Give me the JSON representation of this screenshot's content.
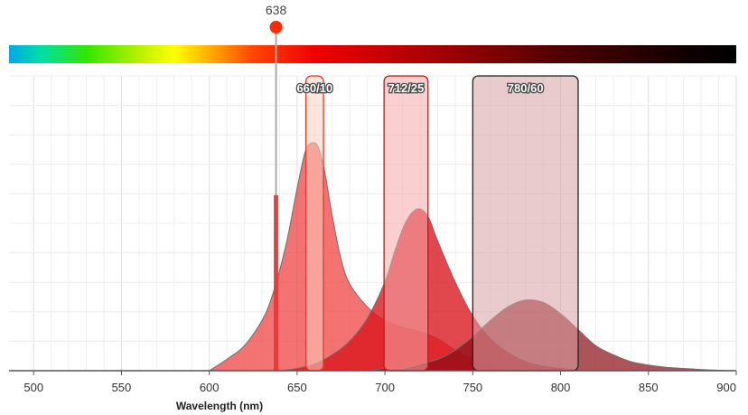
{
  "chart_data": {
    "type": "area",
    "title": "",
    "xlabel": "Wavelength (nm)",
    "ylabel": "",
    "xlim": [
      486,
      900
    ],
    "ylim": [
      0,
      100
    ],
    "x_ticks": [
      500,
      550,
      600,
      650,
      700,
      750,
      800,
      850,
      900
    ],
    "x_tick_labels": [
      "500",
      "550",
      "600",
      "650",
      "700",
      "750",
      "800",
      "850",
      "900"
    ],
    "grid": true,
    "spectrum_bar": {
      "range": [
        486,
        900
      ],
      "stops": [
        {
          "nm": 486,
          "color": "#00a9e6"
        },
        {
          "nm": 505,
          "color": "#00e0a0"
        },
        {
          "nm": 530,
          "color": "#33e600"
        },
        {
          "nm": 560,
          "color": "#b8f000"
        },
        {
          "nm": 580,
          "color": "#ffff00"
        },
        {
          "nm": 600,
          "color": "#ffae00"
        },
        {
          "nm": 625,
          "color": "#ff4500"
        },
        {
          "nm": 660,
          "color": "#f00000"
        },
        {
          "nm": 720,
          "color": "#b00000"
        },
        {
          "nm": 800,
          "color": "#500000"
        },
        {
          "nm": 870,
          "color": "#100000"
        },
        {
          "nm": 900,
          "color": "#000000"
        }
      ]
    },
    "laser": {
      "wavelength": 638,
      "label": "638",
      "color": "#ff2a00",
      "line_color": "#aaaaaa",
      "excitation_level": 77
    },
    "filters": [
      {
        "label": "660/10",
        "center": 660,
        "width": 10,
        "fill": "#fad0c0",
        "stroke": "#e23a2a"
      },
      {
        "label": "712/25",
        "center": 712,
        "width": 25,
        "fill": "#f6a8a8",
        "stroke": "#c01818"
      },
      {
        "label": "780/60",
        "center": 780,
        "width": 60,
        "fill": "#d8a0a4",
        "stroke": "#222222"
      }
    ],
    "series": [
      {
        "color": "#ee3b3b",
        "opacity": 0.72,
        "x": [
          600,
          610,
          620,
          630,
          635,
          640,
          645,
          650,
          655,
          660,
          663,
          666,
          670,
          675,
          680,
          690,
          700,
          710,
          720,
          730,
          740,
          750,
          760,
          770
        ],
        "y": [
          0,
          5,
          11,
          22,
          31,
          44,
          60,
          80,
          97,
          100,
          96,
          86,
          68,
          49,
          38,
          28,
          22,
          19,
          17,
          14,
          9,
          5,
          2,
          0
        ]
      },
      {
        "color": "#d8141c",
        "opacity": 0.78,
        "x": [
          640,
          650,
          660,
          670,
          680,
          690,
          700,
          705,
          710,
          715,
          720,
          725,
          730,
          740,
          750,
          760,
          770,
          780,
          790,
          800,
          810
        ],
        "y": [
          0,
          1,
          3,
          7,
          13,
          23,
          39,
          51,
          62,
          69,
          71,
          67,
          57,
          39,
          24,
          14,
          8,
          4,
          2,
          1,
          0
        ]
      },
      {
        "color": "#8a0a14",
        "opacity": 0.7,
        "x": [
          690,
          700,
          710,
          720,
          730,
          740,
          750,
          760,
          770,
          780,
          790,
          800,
          810,
          820,
          830,
          840,
          850,
          860,
          870,
          880,
          890,
          900
        ],
        "y": [
          0,
          1,
          1,
          3,
          5,
          9,
          15,
          22,
          28,
          31,
          30,
          25,
          18,
          11,
          7,
          4,
          2.5,
          1.5,
          1,
          0.5,
          0.2,
          0
        ]
      }
    ]
  }
}
